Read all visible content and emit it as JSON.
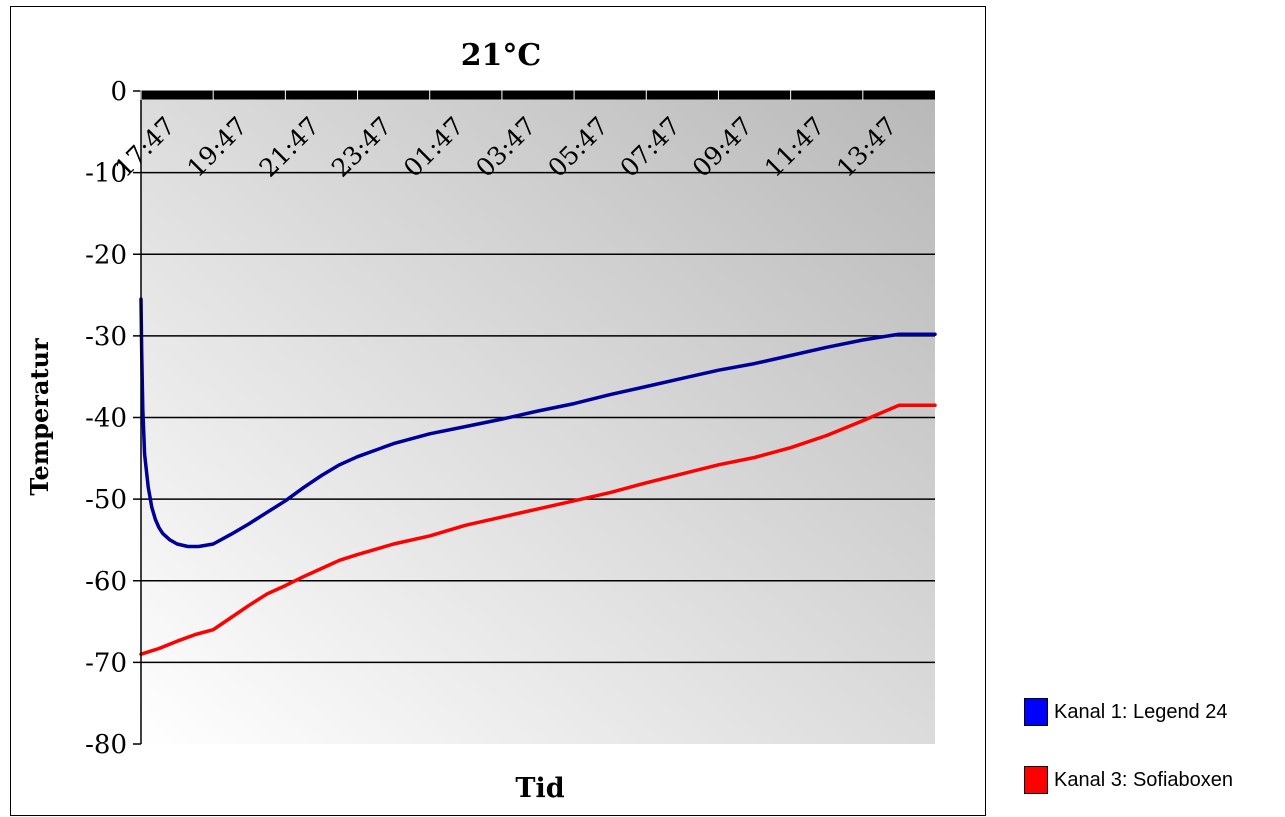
{
  "chart_data": {
    "type": "line",
    "title": "21°C",
    "xlabel": "Tid",
    "ylabel": "Temperatur",
    "x_tick_labels": [
      "17:47",
      "19:47",
      "21:47",
      "23:47",
      "01:47",
      "03:47",
      "05:47",
      "07:47",
      "09:47",
      "11:47",
      "13:47"
    ],
    "x_range_hours": [
      0,
      22
    ],
    "ylim": [
      -80,
      0
    ],
    "y_ticks": [
      0,
      -10,
      -20,
      -30,
      -40,
      -50,
      -60,
      -70,
      -80
    ],
    "grid": true,
    "legend_position": "bottom-right",
    "series": [
      {
        "name": "Kanal 1: Legend 24",
        "color": "#000099",
        "x": [
          0,
          0.02,
          0.05,
          0.1,
          0.2,
          0.3,
          0.4,
          0.5,
          0.6,
          0.8,
          1.0,
          1.3,
          1.6,
          2.0,
          2.5,
          3.0,
          3.5,
          4.0,
          4.5,
          5.0,
          5.5,
          6.0,
          7.0,
          8.0,
          9.0,
          10.0,
          11.0,
          12.0,
          13.0,
          14.0,
          15.0,
          16.0,
          17.0,
          18.0,
          19.0,
          20.0,
          21.0,
          22.0
        ],
        "y": [
          -25.5,
          -32,
          -39,
          -44.5,
          -48.5,
          -51,
          -52.5,
          -53.5,
          -54.2,
          -55,
          -55.5,
          -55.8,
          -55.8,
          -55.5,
          -54.3,
          -53,
          -51.6,
          -50.2,
          -48.6,
          -47.1,
          -45.8,
          -44.8,
          -43.2,
          -42,
          -41.1,
          -40.2,
          -39.2,
          -38.3,
          -37.2,
          -36.2,
          -35.2,
          -34.2,
          -33.4,
          -32.4,
          -31.4,
          -30.5,
          -29.8,
          -29.8
        ]
      },
      {
        "name": "Kanal 3: Sofiaboxen",
        "color": "#ff0000",
        "x": [
          0,
          0.5,
          1.0,
          1.5,
          2.0,
          2.5,
          3.0,
          3.5,
          4.0,
          4.5,
          5.0,
          5.5,
          6.0,
          7.0,
          8.0,
          9.0,
          10.0,
          11.0,
          12.0,
          13.0,
          14.0,
          15.0,
          16.0,
          17.0,
          18.0,
          19.0,
          20.0,
          21.0,
          22.0
        ],
        "y": [
          -69,
          -68.3,
          -67.4,
          -66.6,
          -66,
          -64.5,
          -63,
          -61.6,
          -60.6,
          -59.5,
          -58.5,
          -57.5,
          -56.8,
          -55.5,
          -54.5,
          -53.2,
          -52.2,
          -51.2,
          -50.2,
          -49.2,
          -48,
          -46.9,
          -45.8,
          -44.9,
          -43.7,
          -42.2,
          -40.4,
          -38.5,
          -38.5
        ]
      }
    ]
  }
}
